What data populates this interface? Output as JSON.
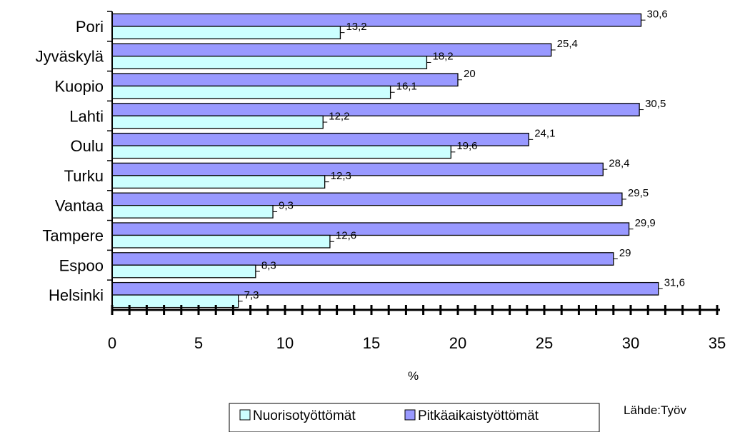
{
  "chart_data": {
    "type": "bar",
    "orientation": "horizontal",
    "categories": [
      "Pori",
      "Jyväskylä",
      "Kuopio",
      "Lahti",
      "Oulu",
      "Turku",
      "Vantaa",
      "Tampere",
      "Espoo",
      "Helsinki"
    ],
    "series": [
      {
        "name": "Nuorisotyöttömät",
        "color": "#ccffff",
        "values": [
          13.2,
          18.2,
          16.1,
          12.2,
          19.6,
          12.3,
          9.3,
          12.6,
          8.3,
          7.3
        ],
        "labels": [
          "13,2",
          "18,2",
          "16,1",
          "12,2",
          "19,6",
          "12,3",
          "9,3",
          "12,6",
          "8,3",
          "7,3"
        ]
      },
      {
        "name": "Pitkäaikaistyöttömät",
        "color": "#9999ff",
        "values": [
          30.6,
          25.4,
          20,
          30.5,
          24.1,
          28.4,
          29.5,
          29.9,
          29,
          31.6
        ],
        "labels": [
          "30,6",
          "25,4",
          "20",
          "30,5",
          "24,1",
          "28,4",
          "29,5",
          "29,9",
          "29",
          "31,6"
        ]
      }
    ],
    "xlabel": "%",
    "ylabel": "",
    "xlim": [
      0,
      35
    ],
    "xticks": [
      0,
      5,
      10,
      15,
      20,
      25,
      30,
      35
    ],
    "minor_tick_step": 1,
    "grid": false,
    "legend": "bottom",
    "source": "Lähde:Työv"
  }
}
